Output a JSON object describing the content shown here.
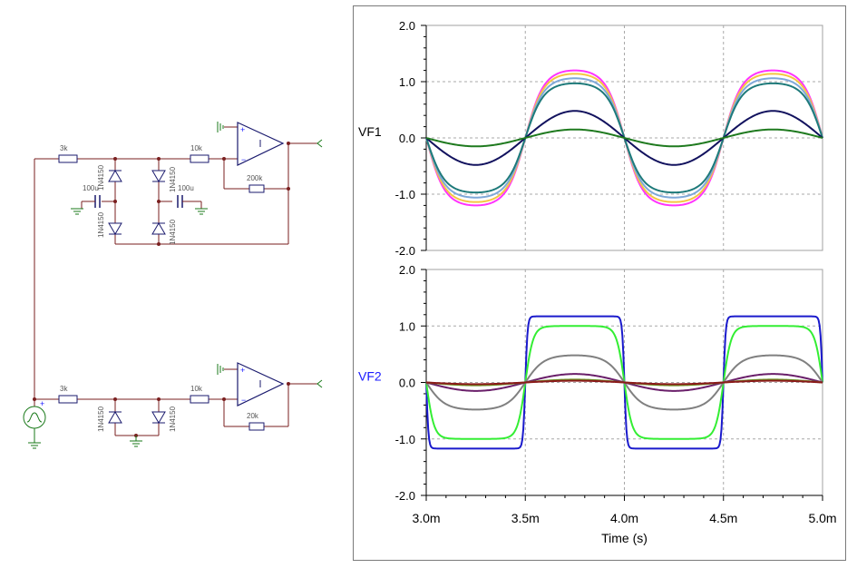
{
  "schematic": {
    "r_in_top": "3k",
    "r_in_bottom": "3k",
    "r_mid_top": "10k",
    "r_mid_bottom": "10k",
    "r_fb_top": "200k",
    "r_fb_bottom": "20k",
    "diode_top_left": "1N4150",
    "diode_top_left_lower": "1N4150",
    "diode_top_right": "1N4150",
    "diode_top_right_lower": "1N4150",
    "diode_bottom_left": "1N4150",
    "diode_bottom_right": "1N4150",
    "cap_left": "100u",
    "cap_right": "100u",
    "colors": {
      "wire": "#7a1f1f",
      "component": "#1a1a6e",
      "ground": "#1a7a1a"
    }
  },
  "chart_data": [
    {
      "type": "line",
      "ylabel": "VF1",
      "ylabel_color": "#000000",
      "xlabel": "",
      "xlim": [
        0.003,
        0.005
      ],
      "ylim": [
        -2.0,
        2.0
      ],
      "yticks": [
        "2.0",
        "1.0",
        "0.0",
        "-1.0",
        "-2.0"
      ],
      "grid": true,
      "series": [
        {
          "color": "#ff33ff",
          "amplitude": 1.2,
          "shape": "soft-sine",
          "x": [
            0.003,
            0.00325,
            0.0035,
            0.00375,
            0.004,
            0.00425,
            0.0045,
            0.00475,
            0.005
          ],
          "values": [
            0.0,
            -1.2,
            0.0,
            1.2,
            0.0,
            -1.2,
            0.0,
            1.2,
            0.0
          ]
        },
        {
          "color": "#f5c542",
          "amplitude": 1.14,
          "shape": "soft-sine",
          "x": [
            0.003,
            0.00325,
            0.0035,
            0.00375,
            0.004,
            0.00425,
            0.0045,
            0.00475,
            0.005
          ],
          "values": [
            0.0,
            -1.14,
            0.0,
            1.14,
            0.0,
            -1.14,
            0.0,
            1.14,
            0.0
          ]
        },
        {
          "color": "#7fa8d8",
          "amplitude": 1.06,
          "shape": "soft-sine",
          "x": [
            0.003,
            0.00325,
            0.0035,
            0.00375,
            0.004,
            0.00425,
            0.0045,
            0.00475,
            0.005
          ],
          "values": [
            0.0,
            -1.06,
            0.0,
            1.06,
            0.0,
            -1.06,
            0.0,
            1.06,
            0.0
          ]
        },
        {
          "color": "#1e7a7a",
          "amplitude": 0.97,
          "shape": "soft-sine",
          "x": [
            0.003,
            0.00325,
            0.0035,
            0.00375,
            0.004,
            0.00425,
            0.0045,
            0.00475,
            0.005
          ],
          "values": [
            0.0,
            -0.97,
            0.0,
            0.97,
            0.0,
            -0.97,
            0.0,
            0.97,
            0.0
          ]
        },
        {
          "color": "#12125e",
          "amplitude": 0.48,
          "shape": "sine",
          "x": [
            0.003,
            0.00325,
            0.0035,
            0.00375,
            0.004,
            0.00425,
            0.0045,
            0.00475,
            0.005
          ],
          "values": [
            0.0,
            -0.48,
            0.0,
            0.48,
            0.0,
            -0.48,
            0.0,
            0.48,
            0.0
          ]
        },
        {
          "color": "#1f7a1f",
          "amplitude": 0.15,
          "shape": "sine",
          "x": [
            0.003,
            0.00325,
            0.0035,
            0.00375,
            0.004,
            0.00425,
            0.0045,
            0.00475,
            0.005
          ],
          "values": [
            0.0,
            -0.15,
            0.0,
            0.15,
            0.0,
            -0.15,
            0.0,
            0.15,
            0.0
          ]
        }
      ]
    },
    {
      "type": "line",
      "ylabel": "VF2",
      "ylabel_color": "#1a1aff",
      "xlabel": "Time (s)",
      "xlim": [
        0.003,
        0.005
      ],
      "ylim": [
        -2.0,
        2.0
      ],
      "yticks": [
        "2.0",
        "1.0",
        "0.0",
        "-1.0",
        "-2.0"
      ],
      "xticks": [
        "3.0m",
        "3.5m",
        "4.0m",
        "4.5m",
        "5.0m"
      ],
      "grid": true,
      "series": [
        {
          "color": "#1a1acc",
          "amplitude": 1.17,
          "shape": "square",
          "x": [
            0.003,
            0.00325,
            0.0035,
            0.00375,
            0.004,
            0.00425,
            0.0045,
            0.00475,
            0.005
          ],
          "values": [
            0.0,
            -1.17,
            0.0,
            1.17,
            0.0,
            -1.17,
            0.0,
            1.17,
            0.0
          ]
        },
        {
          "color": "#33ee33",
          "amplitude": 1.0,
          "shape": "rounded-square",
          "x": [
            0.003,
            0.00325,
            0.0035,
            0.00375,
            0.004,
            0.00425,
            0.0045,
            0.00475,
            0.005
          ],
          "values": [
            0.0,
            -1.0,
            0.0,
            1.0,
            0.0,
            -1.0,
            0.0,
            1.0,
            0.0
          ]
        },
        {
          "color": "#808080",
          "amplitude": 0.48,
          "shape": "soft-sine",
          "x": [
            0.003,
            0.00325,
            0.0035,
            0.00375,
            0.004,
            0.00425,
            0.0045,
            0.00475,
            0.005
          ],
          "values": [
            0.0,
            -0.48,
            0.0,
            0.48,
            0.0,
            -0.48,
            0.0,
            0.48,
            0.0
          ]
        },
        {
          "color": "#6a1f6a",
          "amplitude": 0.15,
          "shape": "sine",
          "x": [
            0.003,
            0.00325,
            0.0035,
            0.00375,
            0.004,
            0.00425,
            0.0045,
            0.00475,
            0.005
          ],
          "values": [
            0.0,
            -0.15,
            0.0,
            0.15,
            0.0,
            -0.15,
            0.0,
            0.15,
            0.0
          ]
        },
        {
          "color": "#6b8e23",
          "amplitude": 0.05,
          "shape": "sine",
          "x": [
            0.003,
            0.00325,
            0.0035,
            0.00375,
            0.004,
            0.00425,
            0.0045,
            0.00475,
            0.005
          ],
          "values": [
            0.0,
            -0.05,
            0.0,
            0.05,
            0.0,
            -0.05,
            0.0,
            0.05,
            0.0
          ]
        },
        {
          "color": "#8b1a1a",
          "amplitude": 0.03,
          "shape": "sine",
          "x": [
            0.003,
            0.00325,
            0.0035,
            0.00375,
            0.004,
            0.00425,
            0.0045,
            0.00475,
            0.005
          ],
          "values": [
            0.0,
            -0.03,
            0.0,
            0.03,
            0.0,
            -0.03,
            0.0,
            0.03,
            0.0
          ]
        }
      ]
    }
  ]
}
